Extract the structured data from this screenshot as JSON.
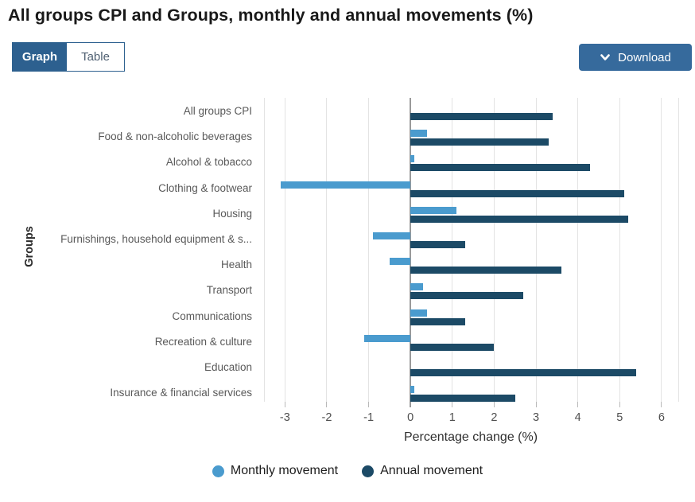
{
  "header": {
    "title": "All groups CPI and Groups, monthly and annual movements (%)"
  },
  "toolbar": {
    "view_toggle": {
      "graph_label": "Graph",
      "table_label": "Table",
      "active": "Graph"
    },
    "download_label": "Download"
  },
  "chart_data": {
    "type": "bar",
    "orientation": "horizontal",
    "xlabel": "Percentage change (%)",
    "ylabel": "Groups",
    "xlim": [
      -3.5,
      6.4
    ],
    "xticks": [
      -3,
      -2,
      -1,
      0,
      1,
      2,
      3,
      4,
      5,
      6
    ],
    "grid": true,
    "legend_position": "bottom",
    "categories": [
      "All groups CPI",
      "Food & non-alcoholic beverages",
      "Alcohol & tobacco",
      "Clothing & footwear",
      "Housing",
      "Furnishings, household equipment & s...",
      "Health",
      "Transport",
      "Communications",
      "Recreation & culture",
      "Education",
      "Insurance & financial services"
    ],
    "series": [
      {
        "name": "Monthly movement",
        "color": "#4a9bce",
        "values": [
          0.0,
          0.4,
          0.1,
          -3.1,
          1.1,
          -0.9,
          -0.5,
          0.3,
          0.4,
          -1.1,
          0.0,
          0.1
        ]
      },
      {
        "name": "Annual movement",
        "color": "#1c4a66",
        "values": [
          3.4,
          3.3,
          4.3,
          5.1,
          5.2,
          1.3,
          3.6,
          2.7,
          1.3,
          2.0,
          5.4,
          2.5
        ]
      }
    ]
  },
  "colors": {
    "active_tab_bg": "#2d608f",
    "download_bg": "#366a9c",
    "zero_line": "#9a9a9a",
    "gridline": "#e3e3e3",
    "monthly_series": "#4a9bce",
    "annual_series": "#1c4a66"
  }
}
